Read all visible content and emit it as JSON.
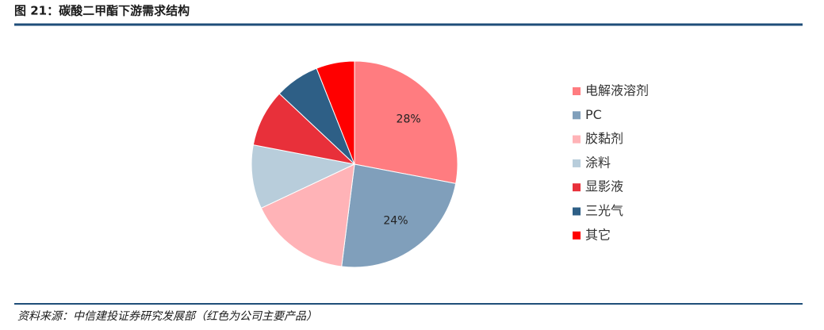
{
  "chart_data": {
    "type": "pie",
    "title": "图 21：碳酸二甲酯下游需求结构",
    "source": "资料来源：中信建投证券研究发展部（红色为公司主要产品）",
    "categories": [
      "电解液溶剂",
      "PC",
      "胶黏剂",
      "涂料",
      "显影液",
      "三光气",
      "其它"
    ],
    "values": [
      28,
      24,
      16,
      10,
      9,
      7,
      6
    ],
    "value_labels": [
      "28%",
      "24%",
      null,
      null,
      null,
      null,
      null
    ],
    "colors": [
      "#ff7c80",
      "#809fbb",
      "#ffb3b7",
      "#b8cddb",
      "#e8303a",
      "#2e5f86",
      "#ff0000"
    ],
    "legend": "right"
  }
}
